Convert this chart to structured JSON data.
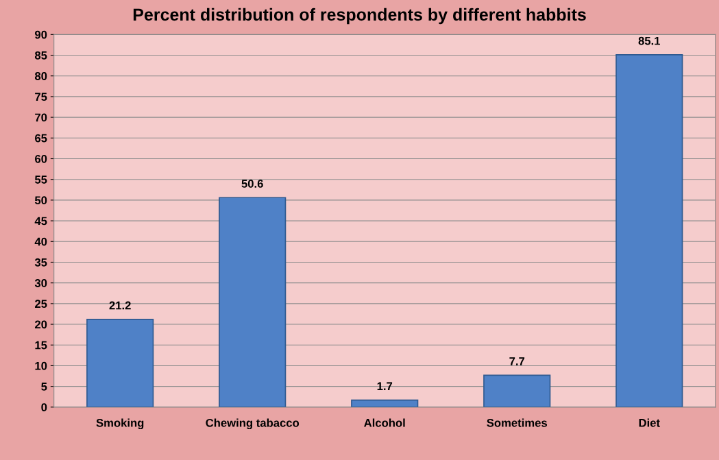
{
  "chart_data": {
    "type": "bar",
    "title": "Percent distribution of respondents by different habbits",
    "categories": [
      "Smoking",
      "Chewing tabacco",
      "Alcohol",
      "Sometimes",
      "Diet"
    ],
    "values": [
      21.2,
      50.6,
      1.7,
      7.7,
      85.1
    ],
    "color": "#4f81c7",
    "ylim": [
      0,
      90
    ],
    "yticks": [
      0,
      5,
      10,
      15,
      20,
      25,
      30,
      35,
      40,
      45,
      50,
      55,
      60,
      65,
      70,
      75,
      80,
      85,
      90
    ],
    "grid": "y",
    "data_labels": true
  }
}
